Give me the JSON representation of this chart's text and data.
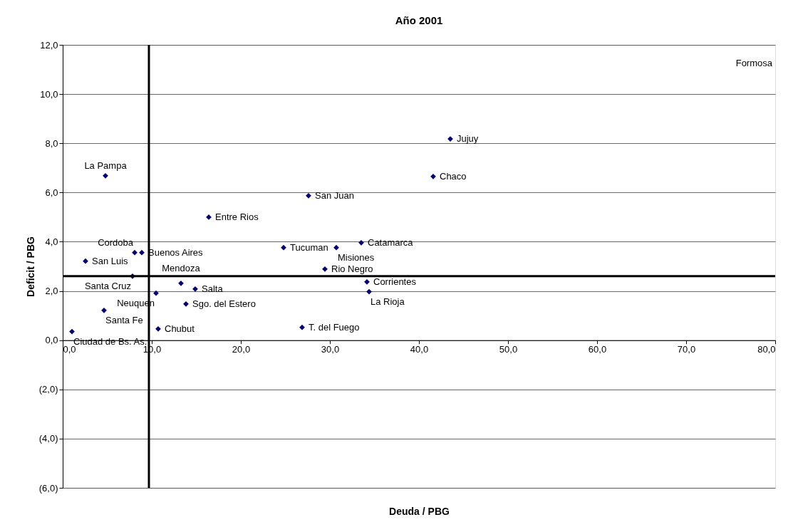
{
  "chart_data": {
    "type": "scatter",
    "title": "Año 2001",
    "xlabel": "Deuda / PBG",
    "ylabel": "Deficit / PBG",
    "x": [
      1.04,
      2.56,
      4.64,
      4.8,
      8.08,
      8.88,
      7.84,
      10.48,
      10.72,
      13.28,
      14.88,
      13.84,
      16.4,
      24.8,
      27.6,
      30.72,
      26.88,
      29.44,
      33.52,
      34.16,
      34.4,
      41.6,
      43.52
    ],
    "values": [
      0.35,
      3.21,
      1.21,
      6.68,
      3.56,
      3.56,
      2.6,
      1.91,
      0.46,
      2.31,
      2.08,
      1.47,
      5.0,
      3.76,
      5.87,
      3.76,
      0.52,
      2.89,
      3.96,
      2.37,
      1.97,
      6.65,
      8.18
    ],
    "value_labels": [
      "Ciudad de Bs. As.",
      "San Luis",
      "Santa Fe",
      "La Pampa",
      "Cordoba",
      "Buenos Aires",
      "Santa Cruz",
      "Neuquen",
      "Chubut",
      "Mendoza",
      "Salta",
      "Sgo. del Estero",
      "Entre Rios",
      "Tucuman",
      "San Juan",
      "Misiones",
      "T. del Fuego",
      "Rio Negro",
      "Catamarca",
      "Corrientes",
      "La Rioja",
      "Chaco",
      "Jujuy"
    ],
    "color": "#000080",
    "marker": "diamond",
    "xlim": [
      0,
      80
    ],
    "ylim": [
      -6,
      12
    ],
    "xticks": [
      {
        "value": 0,
        "label": "0,0"
      },
      {
        "value": 10,
        "label": "10,0"
      },
      {
        "value": 20,
        "label": "20,0"
      },
      {
        "value": 30,
        "label": "30,0"
      },
      {
        "value": 40,
        "label": "40,0"
      },
      {
        "value": 50,
        "label": "50,0"
      },
      {
        "value": 60,
        "label": "60,0"
      },
      {
        "value": 70,
        "label": "70,0"
      },
      {
        "value": 80,
        "label": "80,0"
      }
    ],
    "yticks": [
      {
        "value": -6,
        "label": "(6,0)"
      },
      {
        "value": -4,
        "label": "(4,0)"
      },
      {
        "value": -2,
        "label": "(2,0)"
      },
      {
        "value": 0,
        "label": "0,0"
      },
      {
        "value": 2,
        "label": "2,0"
      },
      {
        "value": 4,
        "label": "4,0"
      },
      {
        "value": 6,
        "label": "6,0"
      },
      {
        "value": 8,
        "label": "8,0"
      },
      {
        "value": 10,
        "label": "10,0"
      },
      {
        "value": 12,
        "label": "12,0"
      }
    ],
    "grid": "y",
    "ref_lines": [
      {
        "axis": "x",
        "value": 9.68,
        "color": "#000000"
      },
      {
        "axis": "y",
        "value": 2.6,
        "color": "#000000"
      }
    ],
    "annotations": [
      "Formosa"
    ]
  }
}
